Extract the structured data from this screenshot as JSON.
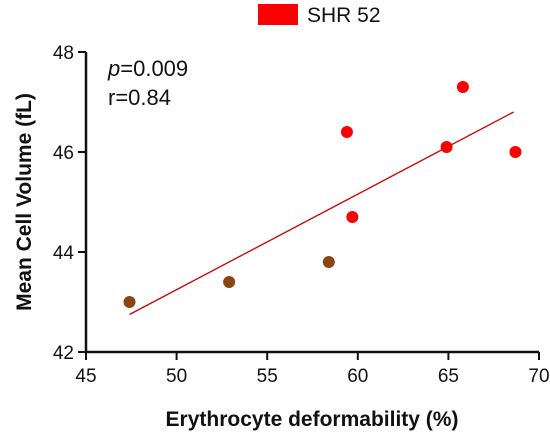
{
  "chart_data": {
    "type": "scatter",
    "xlabel": "Erythrocyte deformability (%)",
    "ylabel": "Mean Cell Volume (fL)",
    "xlim": [
      45,
      70
    ],
    "ylim": [
      42,
      48
    ],
    "xticks": [
      "45",
      "50",
      "55",
      "60",
      "65",
      "70"
    ],
    "yticks": [
      "42",
      "44",
      "46",
      "48"
    ],
    "xtick_values": [
      45,
      50,
      55,
      60,
      65,
      70
    ],
    "ytick_values": [
      42,
      44,
      46,
      48
    ],
    "legend": {
      "label": "SHR 52",
      "position": "top",
      "color": "#ff0000"
    },
    "annotations": {
      "p_prefix": "p",
      "p_value": "=0.009",
      "r_text": "r=0.84"
    },
    "series": [
      {
        "name": "SHR 52",
        "color": "#ff0000",
        "points": [
          {
            "x": 47.4,
            "y": 43.0,
            "color": "#8b4513"
          },
          {
            "x": 52.9,
            "y": 43.4,
            "color": "#8b4513"
          },
          {
            "x": 58.4,
            "y": 43.8,
            "color": "#8b4513"
          },
          {
            "x": 59.4,
            "y": 46.4,
            "color": "#ff0000"
          },
          {
            "x": 59.7,
            "y": 44.7,
            "color": "#ff0000"
          },
          {
            "x": 64.9,
            "y": 46.1,
            "color": "#ff0000"
          },
          {
            "x": 65.8,
            "y": 47.3,
            "color": "#ff0000"
          },
          {
            "x": 68.7,
            "y": 46.0,
            "color": "#ff0000"
          }
        ]
      }
    ],
    "trendline": {
      "x": [
        47.4,
        68.6
      ],
      "y": [
        42.75,
        46.8
      ],
      "color": "#cc0000"
    }
  }
}
